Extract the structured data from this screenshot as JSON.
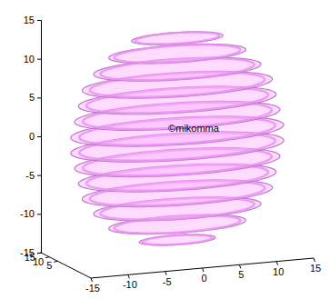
{
  "chart_data": {
    "type": "surface3d",
    "color": "#e58ef0",
    "annotation": "©mikomma",
    "xlim": [
      -15,
      15
    ],
    "xticks": [
      -15,
      -10,
      -5,
      0,
      5,
      10,
      15
    ],
    "ylim": [
      -15,
      15
    ],
    "yticks": [
      5,
      10,
      15
    ],
    "zlim": [
      -15,
      15
    ],
    "zticks": [
      -15,
      -10,
      -5,
      0,
      5,
      10,
      15
    ],
    "rings": {
      "z": [
        -13,
        -11,
        -9,
        -7,
        -5,
        -3,
        -1,
        1,
        3,
        5,
        7,
        9,
        11,
        13
      ],
      "r": [
        5,
        9,
        11,
        12.5,
        13,
        13.5,
        14,
        14,
        13.5,
        13,
        12.5,
        11,
        9,
        6
      ]
    }
  }
}
